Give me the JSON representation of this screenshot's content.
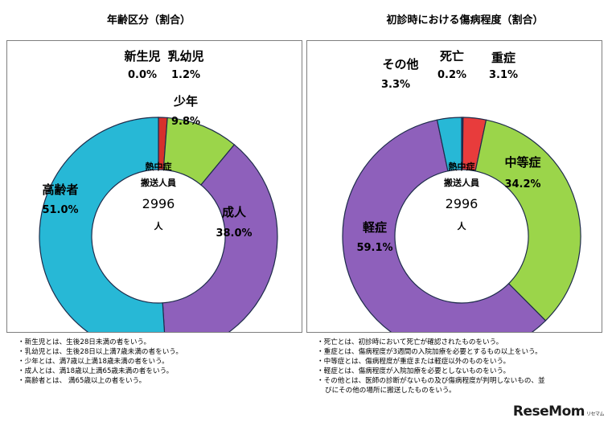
{
  "chart_data": [
    {
      "type": "pie",
      "title": "年齢区分（割合）",
      "center": [
        "熱中症",
        "搬送人員",
        "2996",
        "人"
      ],
      "slices": [
        {
          "name": "新生児",
          "value": 0.0,
          "label": "0.0%",
          "color": "#d6302c"
        },
        {
          "name": "乳幼児",
          "value": 1.2,
          "label": "1.2%",
          "color": "#d6302c"
        },
        {
          "name": "少年",
          "value": 9.8,
          "label": "9.8%",
          "color": "#9bd54a"
        },
        {
          "name": "成人",
          "value": 38.0,
          "label": "38.0%",
          "color": "#8e60bb"
        },
        {
          "name": "高齢者",
          "value": 51.0,
          "label": "51.0%",
          "color": "#27b8d6"
        }
      ]
    },
    {
      "type": "pie",
      "title": "初診時における傷病程度（割合）",
      "center": [
        "熱中症",
        "搬送人員",
        "2996",
        "人"
      ],
      "slices": [
        {
          "name": "死亡",
          "value": 0.2,
          "label": "0.2%",
          "color": "#1f3d7a"
        },
        {
          "name": "重症",
          "value": 3.1,
          "label": "3.1%",
          "color": "#e83c3c"
        },
        {
          "name": "中等症",
          "value": 34.2,
          "label": "34.2%",
          "color": "#9bd54a"
        },
        {
          "name": "軽症",
          "value": 59.1,
          "label": "59.1%",
          "color": "#8e60bb"
        },
        {
          "name": "その他",
          "value": 3.3,
          "label": "3.3%",
          "color": "#27b8d6"
        }
      ]
    }
  ],
  "notes_left": [
    "新生児とは、生後28日未満の者をいう。",
    "乳幼児とは、生後28日以上満7歳未満の者をいう。",
    "少年とは、満7歳以上満18歳未満の者をいう。",
    "成人とは、満18歳以上満65歳未満の者をいう。",
    "高齢者とは、 満65歳以上の者をいう。"
  ],
  "notes_right": [
    "死亡とは、初診時において死亡が確認されたものをいう。",
    "重症とは、傷病程度が3週間の入院加療を必要とするもの以上をいう。",
    "中等症とは、傷病程度が重症または軽症以外のものをいう。",
    "軽症とは、傷病程度が入院加療を必要としないものをいう。",
    "その他とは、医師の診断がないもの及び傷病程度が判明しないもの、並",
    "びにその他の場所に搬送したものをいう。"
  ],
  "logo": {
    "text": "ReseMom",
    "sub": "リセマム"
  }
}
